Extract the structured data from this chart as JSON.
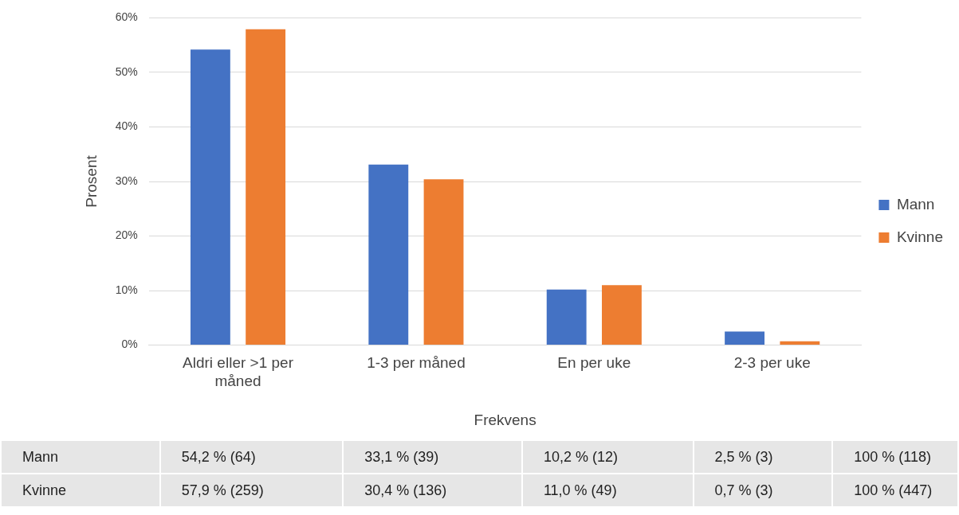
{
  "chart_data": {
    "type": "bar",
    "xlabel": "Frekvens",
    "ylabel": "Prosent",
    "categories": [
      "Aldri eller >1 per måned",
      "1-3 per måned",
      "En per uke",
      "2-3 per uke"
    ],
    "series": [
      {
        "name": "Mann",
        "color": "#4472c4",
        "values": [
          54.2,
          33.1,
          10.2,
          2.5
        ],
        "value_labels": [
          "54,2 % (64)",
          "33,1 % (39)",
          "10,2 % (12)",
          "2,5 % (3)"
        ]
      },
      {
        "name": "Kvinne",
        "color": "#ed7d31",
        "values": [
          57.9,
          30.4,
          11.0,
          0.7
        ],
        "value_labels": [
          "57,9 % (259)",
          "30,4 % (136)",
          "11,0 % (49)",
          "0,7 % (3)"
        ]
      }
    ],
    "annotations": [
      "100 % (118)",
      "100 % (447)"
    ],
    "ylim": [
      0,
      60
    ],
    "yticks": [
      {
        "value": 0,
        "label": "0%"
      },
      {
        "value": 10,
        "label": "10%"
      },
      {
        "value": 20,
        "label": "20%"
      },
      {
        "value": 30,
        "label": "30%"
      },
      {
        "value": 40,
        "label": "40%"
      },
      {
        "value": 50,
        "label": "50%"
      },
      {
        "value": 60,
        "label": "60%"
      }
    ],
    "grid": "y",
    "legend": "right"
  }
}
